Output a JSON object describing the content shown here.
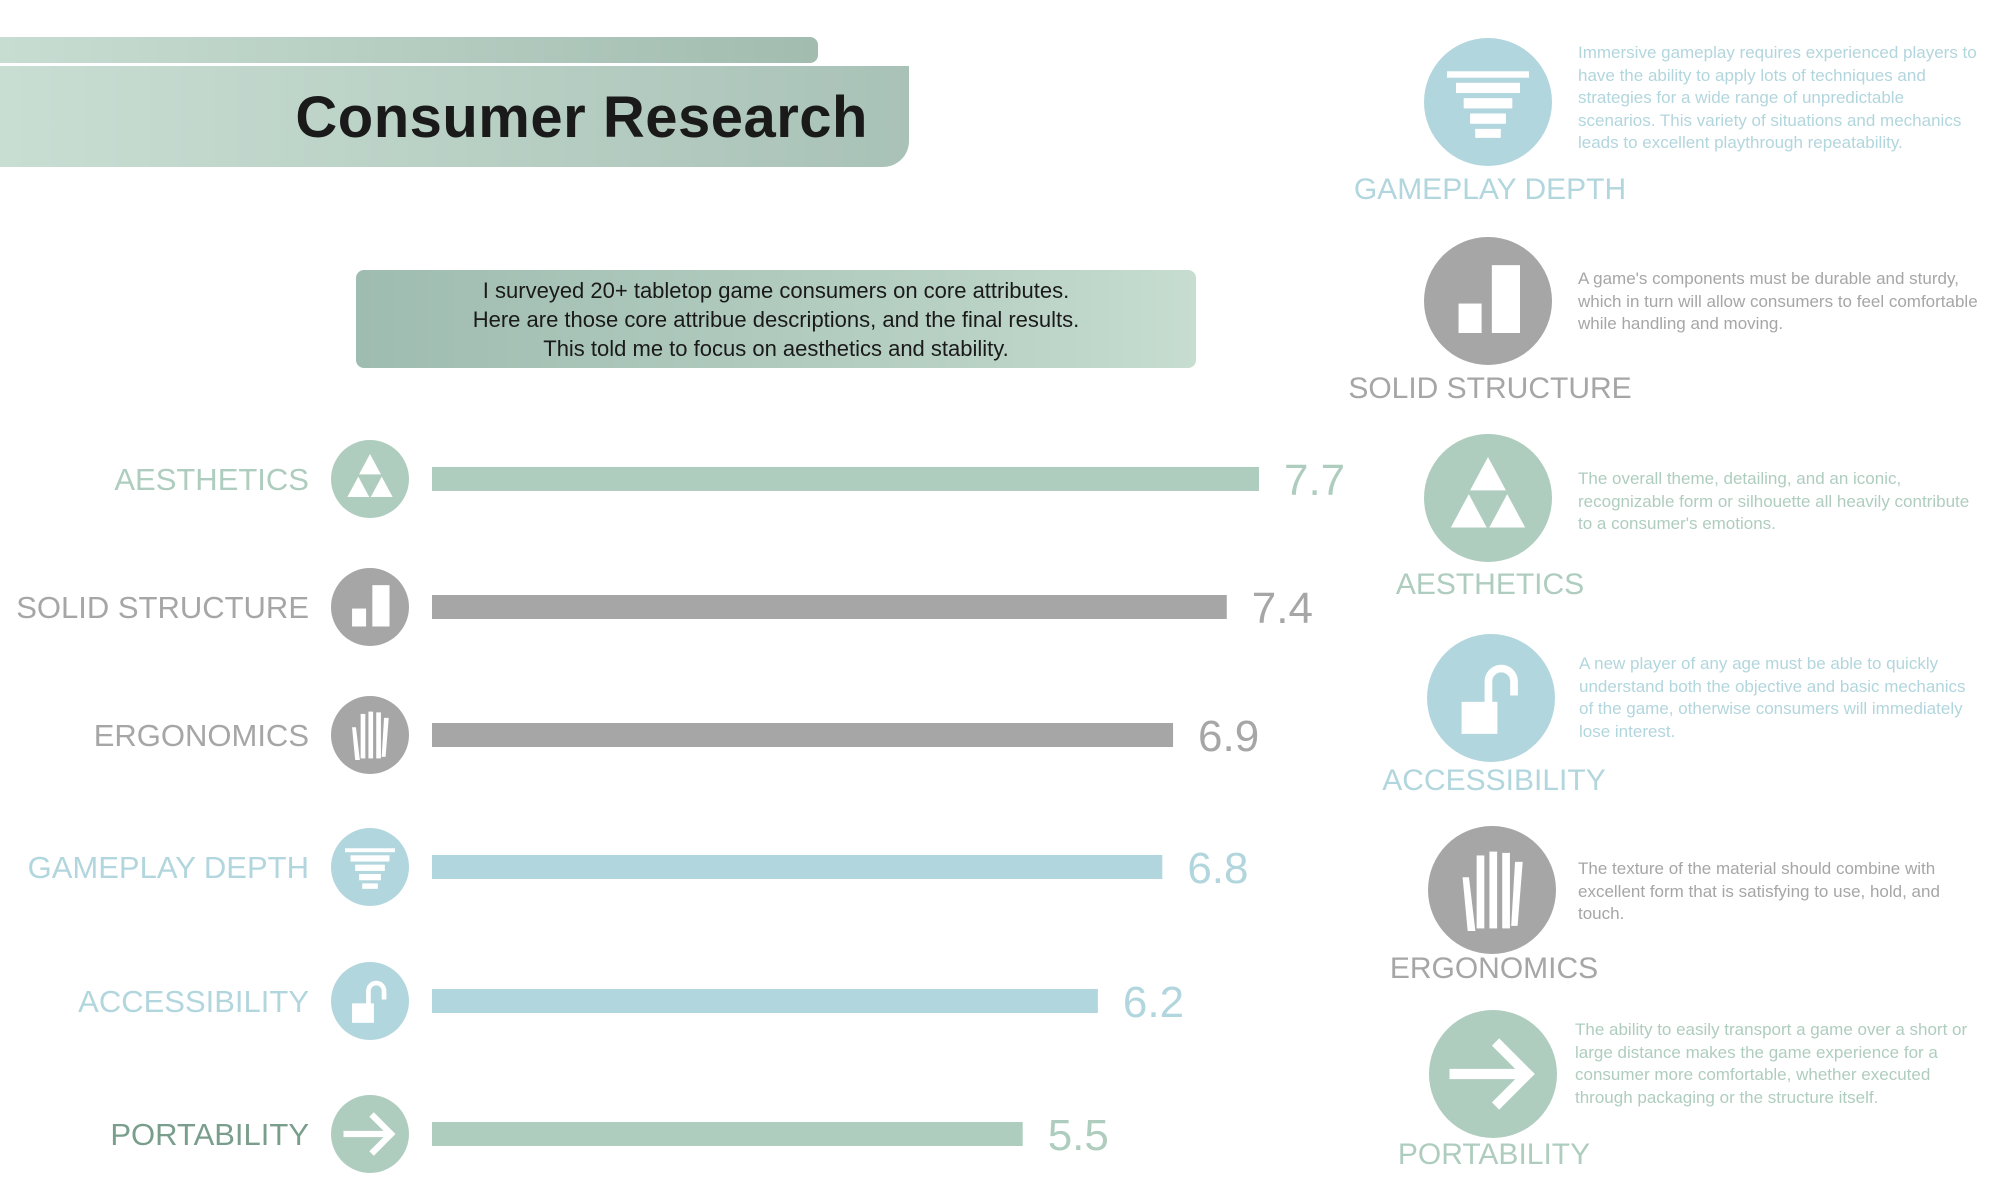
{
  "title": "Consumer Research",
  "summary": {
    "line1": "I surveyed 20+ tabletop game consumers on core attributes.",
    "line2": "Here are those core attribue descriptions, and the final results.",
    "line3": "This told me to focus on aesthetics and stability."
  },
  "colors": {
    "green": "#afcdbf",
    "gray": "#a6a6a6",
    "blue": "#b2d6dd",
    "darkgreen": "#7a9e8c"
  },
  "chart_data": {
    "type": "bar",
    "orientation": "horizontal",
    "categories": [
      "AESTHETICS",
      "SOLID STRUCTURE",
      "ERGONOMICS",
      "GAMEPLAY DEPTH",
      "ACCESSIBILITY",
      "PORTABILITY"
    ],
    "values": [
      7.7,
      7.4,
      6.9,
      6.8,
      6.2,
      5.5
    ],
    "value_labels": [
      "7.7",
      "7.4",
      "6.9",
      "6.8",
      "6.2",
      "5.5"
    ],
    "bar_colors": [
      "#afcdbf",
      "#a6a6a6",
      "#a6a6a6",
      "#b2d6dd",
      "#b2d6dd",
      "#afcdbf"
    ],
    "label_colors": [
      "#afcdbf",
      "#a6a6a6",
      "#a6a6a6",
      "#b2d6dd",
      "#b2d6dd",
      "#7a9e8c"
    ],
    "icons": [
      "triforce-icon",
      "blocks-icon",
      "hand-icon",
      "funnel-icon",
      "padlock-icon",
      "arrow-icon"
    ],
    "title": "",
    "xlabel": "",
    "ylabel": "",
    "grid": false,
    "legend": "none"
  },
  "attributes": [
    {
      "name": "GAMEPLAY DEPTH",
      "icon": "funnel-icon",
      "color": "#b2d6dd",
      "description": "Immersive gameplay requires experienced players to have the ability to apply lots of techniques and strategies for a wide range of unpredictable scenarios. This variety of situations and mechanics leads to excellent playthrough repeatability."
    },
    {
      "name": "SOLID STRUCTURE",
      "icon": "blocks-icon",
      "color": "#a6a6a6",
      "description": "A game's components must be durable and sturdy, which in turn will allow consumers to feel comfortable while handling and moving."
    },
    {
      "name": "AESTHETICS",
      "icon": "triforce-icon",
      "color": "#afcdbf",
      "description": "The overall theme, detailing, and an iconic, recognizable form or silhouette all heavily contribute to a consumer's emotions."
    },
    {
      "name": "ACCESSIBILITY",
      "icon": "padlock-icon",
      "color": "#b2d6dd",
      "description": "A new player of any age must be able to quickly understand both the objective and basic mechanics of the game, otherwise consumers will immediately lose interest."
    },
    {
      "name": "ERGONOMICS",
      "icon": "hand-icon",
      "color": "#a6a6a6",
      "description": "The texture of the material should combine with excellent form that is satisfying to use, hold, and touch."
    },
    {
      "name": "PORTABILITY",
      "icon": "arrow-icon",
      "color": "#afcdbf",
      "description": "The ability to easily transport a game over a short or large distance makes the game experience for a consumer more comfortable, whether executed through packaging or the structure itself."
    }
  ]
}
